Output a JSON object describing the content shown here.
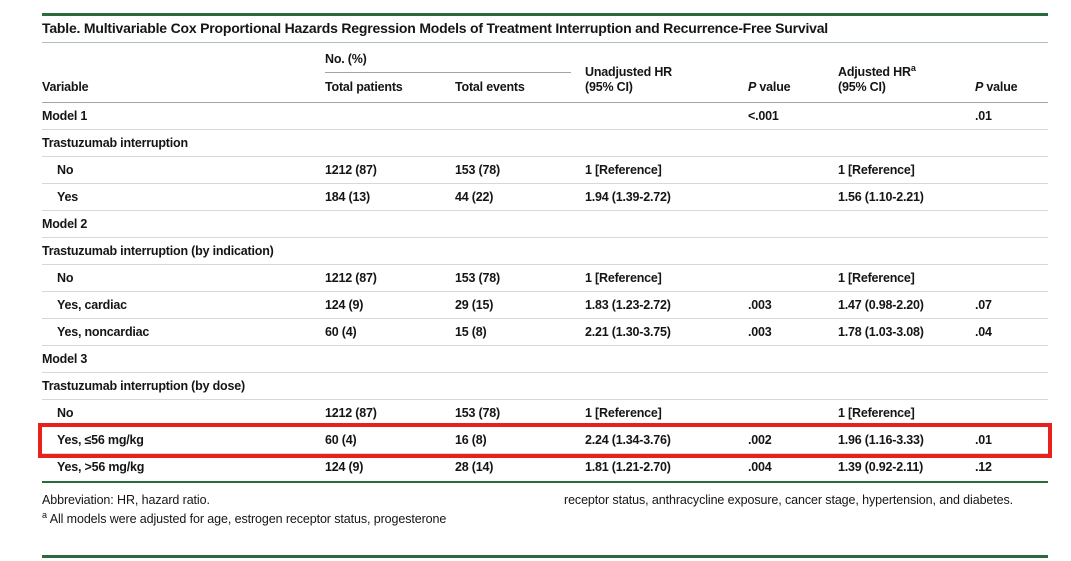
{
  "table": {
    "title": "Table. Multivariable Cox Proportional Hazards Regression Models of Treatment Interruption and Recurrence-Free Survival",
    "headers": {
      "variable": "Variable",
      "no_pct": "No. (%)",
      "total_patients": "Total patients",
      "total_events": "Total events",
      "unadjusted_hr": {
        "line1": "Unadjusted HR",
        "line2": "(95% CI)"
      },
      "p_value": {
        "italic": "P",
        "rest": " value"
      },
      "adjusted_hr": {
        "line1": "Adjusted HR",
        "sup": "a",
        "line2": "(95% CI)"
      }
    },
    "rows": [
      {
        "label": "Model 1",
        "indent": 0,
        "highlight": false,
        "cells": [
          "",
          "",
          "",
          "<.001",
          "",
          ".01"
        ]
      },
      {
        "label": "Trastuzumab interruption",
        "indent": 0,
        "highlight": false,
        "cells": [
          "",
          "",
          "",
          "",
          "",
          ""
        ]
      },
      {
        "label": "No",
        "indent": 1,
        "highlight": false,
        "cells": [
          "1212 (87)",
          "153 (78)",
          "1 [Reference]",
          "",
          "1 [Reference]",
          ""
        ]
      },
      {
        "label": "Yes",
        "indent": 1,
        "highlight": false,
        "cells": [
          "184 (13)",
          "44 (22)",
          "1.94 (1.39-2.72)",
          "",
          "1.56 (1.10-2.21)",
          ""
        ]
      },
      {
        "label": "Model 2",
        "indent": 0,
        "highlight": false,
        "cells": [
          "",
          "",
          "",
          "",
          "",
          ""
        ]
      },
      {
        "label": "Trastuzumab interruption (by indication)",
        "indent": 0,
        "highlight": false,
        "cells": [
          "",
          "",
          "",
          "",
          "",
          ""
        ]
      },
      {
        "label": "No",
        "indent": 1,
        "highlight": false,
        "cells": [
          "1212 (87)",
          "153 (78)",
          "1 [Reference]",
          "",
          "1 [Reference]",
          ""
        ]
      },
      {
        "label": "Yes, cardiac",
        "indent": 1,
        "highlight": false,
        "cells": [
          "124 (9)",
          "29 (15)",
          "1.83 (1.23-2.72)",
          ".003",
          "1.47 (0.98-2.20)",
          ".07"
        ]
      },
      {
        "label": "Yes, noncardiac",
        "indent": 1,
        "highlight": false,
        "cells": [
          "60 (4)",
          "15 (8)",
          "2.21 (1.30-3.75)",
          ".003",
          "1.78 (1.03-3.08)",
          ".04"
        ]
      },
      {
        "label": "Model 3",
        "indent": 0,
        "highlight": false,
        "cells": [
          "",
          "",
          "",
          "",
          "",
          ""
        ]
      },
      {
        "label": "Trastuzumab interruption (by dose)",
        "indent": 0,
        "highlight": false,
        "cells": [
          "",
          "",
          "",
          "",
          "",
          ""
        ]
      },
      {
        "label": "No",
        "indent": 1,
        "highlight": false,
        "cells": [
          "1212 (87)",
          "153 (78)",
          "1 [Reference]",
          "",
          "1 [Reference]",
          ""
        ]
      },
      {
        "label": "Yes, ≤56 mg/kg",
        "indent": 1,
        "highlight": true,
        "cells": [
          "60 (4)",
          "16 (8)",
          "2.24 (1.34-3.76)",
          ".002",
          "1.96 (1.16-3.33)",
          ".01"
        ]
      },
      {
        "label": "Yes, >56 mg/kg",
        "indent": 1,
        "highlight": false,
        "cells": [
          "124 (9)",
          "28 (14)",
          "1.81 (1.21-2.70)",
          ".004",
          "1.39 (0.92-2.11)",
          ".12"
        ]
      }
    ]
  },
  "footnotes": {
    "abbreviation": "Abbreviation: HR, hazard ratio.",
    "marker": "a",
    "left_text": "All models were adjusted for age, estrogen receptor status, progesterone",
    "right_text": "receptor status, anthracycline exposure, cancer stage, hypertension, and diabetes."
  },
  "annotation": {
    "type": "highlight-box",
    "row_label": "Yes, ≤56 mg/kg",
    "color": "#e8211d"
  },
  "colors": {
    "rule_green": "#2a6b3e",
    "title_rule": "#aec3b3",
    "header_rule": "#9cab9f",
    "row_separator": "#d4dad4",
    "highlight_box": "#e8211d",
    "background": "#ffffff",
    "text": "#151515"
  }
}
